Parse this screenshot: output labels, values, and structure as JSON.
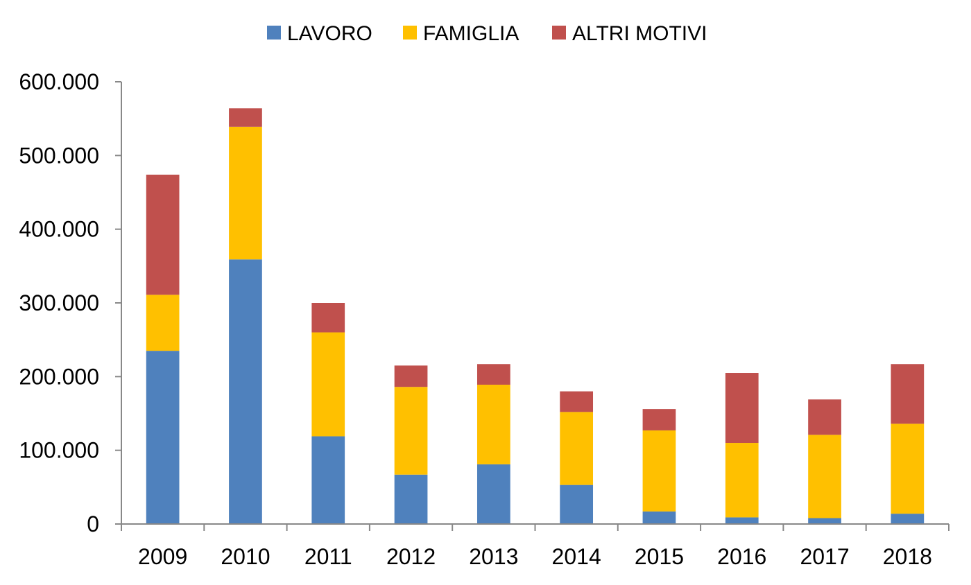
{
  "chart_data": {
    "type": "bar",
    "stacked": true,
    "title": "",
    "xlabel": "",
    "ylabel": "",
    "categories": [
      "2009",
      "2010",
      "2011",
      "2012",
      "2013",
      "2014",
      "2015",
      "2016",
      "2017",
      "2018"
    ],
    "series": [
      {
        "name": "LAVORO",
        "color": "#4f81bd",
        "values": [
          235000,
          359000,
          119000,
          67000,
          81000,
          53000,
          17000,
          9000,
          8000,
          14000
        ]
      },
      {
        "name": "FAMIGLIA",
        "color": "#ffc000",
        "values": [
          76000,
          180000,
          141000,
          119000,
          108000,
          99000,
          110000,
          101000,
          113000,
          122000
        ]
      },
      {
        "name": "ALTRI MOTIVI",
        "color": "#c0504d",
        "values": [
          163000,
          25000,
          40000,
          29000,
          28000,
          28000,
          29000,
          95000,
          48000,
          81000
        ]
      }
    ],
    "ylim": [
      0,
      600000
    ],
    "yticks": [
      0,
      100000,
      200000,
      300000,
      400000,
      500000,
      600000
    ],
    "ytick_labels": [
      "0",
      "100.000",
      "200.000",
      "300.000",
      "400.000",
      "500.000",
      "600.000"
    ],
    "grid": false,
    "legend_position": "top-center"
  }
}
